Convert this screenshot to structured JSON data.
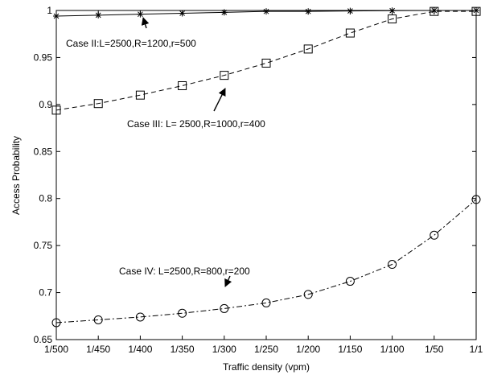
{
  "chart_data": {
    "type": "line",
    "xlabel": "Traffic density (vpm)",
    "ylabel": "Access Probability",
    "categories": [
      "1/500",
      "1/450",
      "1/400",
      "1/350",
      "1/300",
      "1/250",
      "1/200",
      "1/150",
      "1/100",
      "1/50",
      "1/1"
    ],
    "ylim": [
      0.65,
      1.0
    ],
    "yticks": [
      0.65,
      0.7,
      0.75,
      0.8,
      0.85,
      0.9,
      0.95,
      1
    ],
    "ytick_labels": [
      "0.65",
      "0.7",
      "0.75",
      "0.8",
      "0.85",
      "0.9",
      "0.95",
      "1"
    ],
    "grid": false,
    "series": [
      {
        "marker": "star",
        "line_style": "solid",
        "values": [
          0.994,
          0.995,
          0.996,
          0.997,
          0.998,
          0.999,
          0.999,
          0.9995,
          0.9998,
          1.0,
          1.0
        ]
      },
      {
        "marker": "square",
        "line_style": "dashed",
        "values": [
          0.894,
          0.901,
          0.91,
          0.92,
          0.931,
          0.944,
          0.959,
          0.976,
          0.991,
          0.999,
          0.999
        ]
      },
      {
        "marker": "circle",
        "line_style": "dashdot",
        "values": [
          0.668,
          0.671,
          0.674,
          0.678,
          0.683,
          0.689,
          0.698,
          0.712,
          0.73,
          0.761,
          0.799
        ]
      }
    ],
    "annotations": [
      {
        "text": "Case II:L=2500,R=1200,r=500",
        "series": 0,
        "point": 2
      },
      {
        "text": "Case III: L= 2500,R=1000,r=400",
        "series": 1,
        "point": 4
      },
      {
        "text": "Case IV: L=2500,R=800,r=200",
        "series": 2,
        "point": 4
      }
    ]
  }
}
